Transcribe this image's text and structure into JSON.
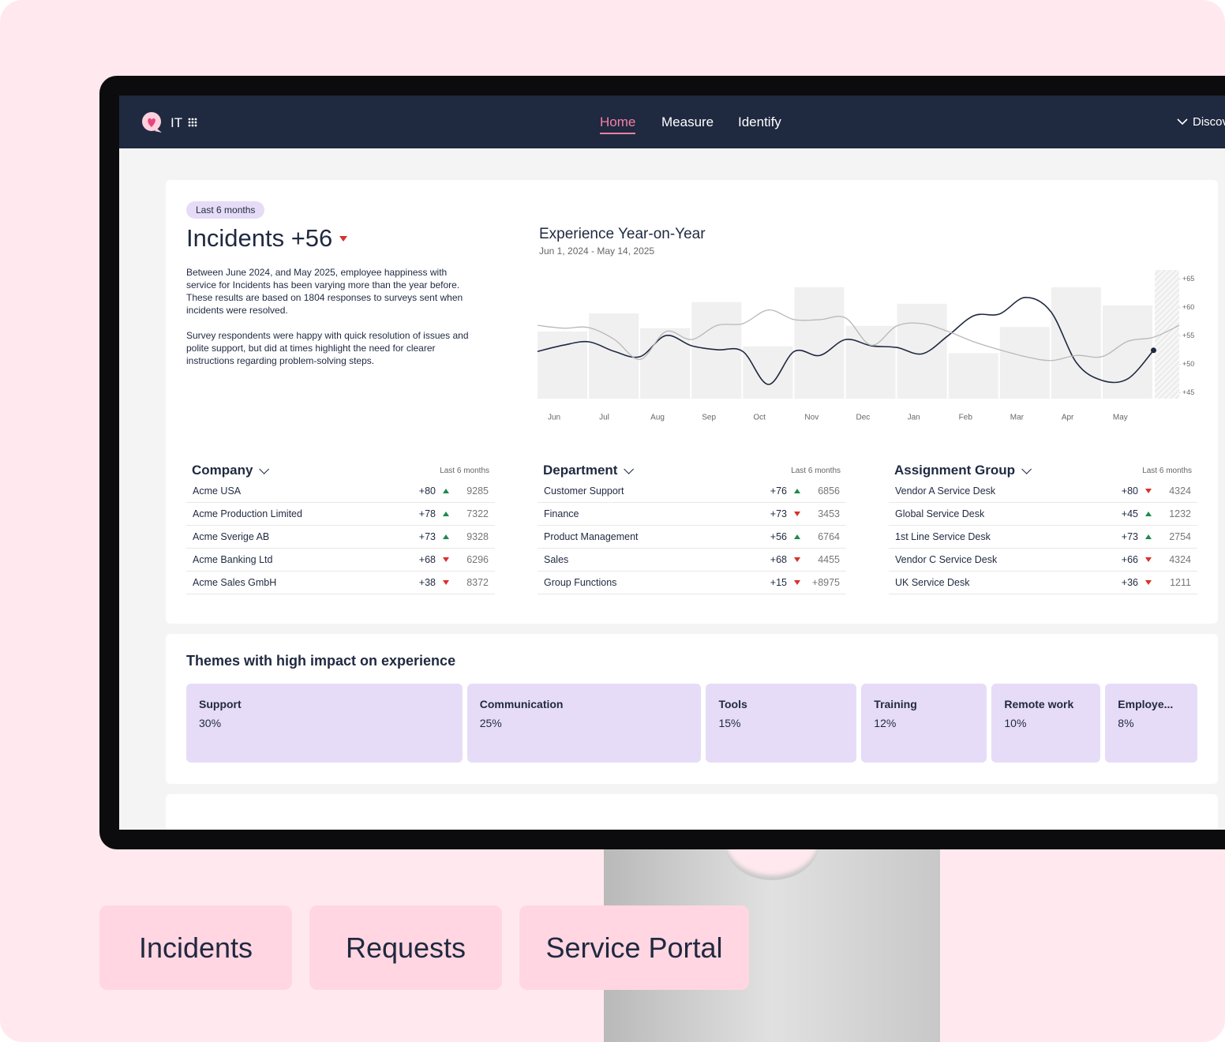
{
  "nav": {
    "brand": "IT",
    "links": [
      "Home",
      "Measure",
      "Identify"
    ],
    "active": 0,
    "right": "Discov"
  },
  "summary": {
    "badge": "Last 6 months",
    "title": "Incidents +56",
    "trend": "down",
    "paragraphs": [
      "Between June 2024, and May 2025, employee happiness with service for Incidents has been varying more than the year before. These results are based on 1804 responses to surveys sent when incidents were resolved.",
      "Survey respondents were happy with quick resolution of issues and polite support, but did at times highlight the need for clearer instructions regarding problem-solving steps."
    ]
  },
  "chart_data": {
    "type": "combo",
    "title": "Experience Year-on-Year",
    "subtitle": "Jun 1, 2024 - May 14, 2025",
    "categories": [
      "Jun",
      "Jul",
      "Aug",
      "Sep",
      "Oct",
      "Nov",
      "Dec",
      "Jan",
      "Feb",
      "Mar",
      "Apr",
      "May"
    ],
    "values": [
      55.8,
      59,
      56.4,
      61,
      53.2,
      63.6,
      56.8,
      60.7,
      52,
      56.6,
      63.6,
      60.4
    ],
    "color": "#f0f0f0",
    "lines": [
      {
        "color": "#1f2940",
        "values": [
          52.3,
          53.4,
          54.0,
          52.3,
          51.4,
          55.1,
          53.3,
          52.6,
          52.3,
          46.5,
          52.3,
          51.6,
          54.4,
          53.3,
          53.0,
          51.9,
          55.1,
          58.6,
          58.9,
          61.8,
          59.3,
          50.3,
          47.2,
          47.5,
          52.5,
          null
        ]
      },
      {
        "color": "#b8b8b8",
        "values": [
          56.9,
          56.4,
          56.5,
          54.4,
          50.9,
          55.8,
          54.4,
          56.9,
          57.2,
          59.6,
          57.9,
          57.9,
          58.2,
          53.4,
          56.8,
          57.2,
          55.8,
          54.0,
          52.6,
          51.4,
          50.7,
          51.6,
          51.4,
          54.1,
          54.8,
          56.9
        ]
      }
    ],
    "ylim": [
      44,
      67
    ],
    "yticks": [
      {
        "value": 45,
        "label": "+45"
      },
      {
        "value": 50,
        "label": "+50"
      },
      {
        "value": 55,
        "label": "+55"
      },
      {
        "value": 60,
        "label": "+60"
      },
      {
        "value": 65,
        "label": "+65"
      }
    ]
  },
  "tables": [
    {
      "title": "Company",
      "period": "Last 6 months",
      "rows": [
        [
          "Acme USA",
          "+80",
          "up",
          "9285"
        ],
        [
          "Acme Production Limited",
          "+78",
          "up",
          "7322"
        ],
        [
          "Acme Sverige AB",
          "+73",
          "up",
          "9328"
        ],
        [
          "Acme Banking Ltd",
          "+68",
          "down",
          "6296"
        ],
        [
          "Acme Sales GmbH",
          "+38",
          "down",
          "8372"
        ]
      ]
    },
    {
      "title": "Department",
      "period": "Last 6 months",
      "rows": [
        [
          "Customer Support",
          "+76",
          "up",
          "6856"
        ],
        [
          "Finance",
          "+73",
          "down",
          "3453"
        ],
        [
          "Product Management",
          "+56",
          "up",
          "6764"
        ],
        [
          "Sales",
          "+68",
          "down",
          "4455"
        ],
        [
          "Group Functions",
          "+15",
          "down",
          "+8975"
        ]
      ]
    },
    {
      "title": "Assignment Group",
      "period": "Last 6 months",
      "rows": [
        [
          "Vendor A Service Desk",
          "+80",
          "down",
          "4324"
        ],
        [
          "Global Service Desk",
          "+45",
          "up",
          "1232"
        ],
        [
          "1st Line Service Desk",
          "+73",
          "up",
          "2754"
        ],
        [
          "Vendor C Service Desk",
          "+66",
          "down",
          "4324"
        ],
        [
          "UK Service Desk",
          "+36",
          "down",
          "1211"
        ]
      ]
    }
  ],
  "themes": {
    "title": "Themes with high impact on experience",
    "items": [
      [
        "Support",
        "30%"
      ],
      [
        "Communication",
        "25%"
      ],
      [
        "Tools",
        "15%"
      ],
      [
        "Training",
        "12%"
      ],
      [
        "Remote work",
        "10%"
      ],
      [
        "Employe...",
        "8%"
      ]
    ]
  },
  "tags": [
    "Incidents",
    "Requests",
    "Service Portal"
  ]
}
